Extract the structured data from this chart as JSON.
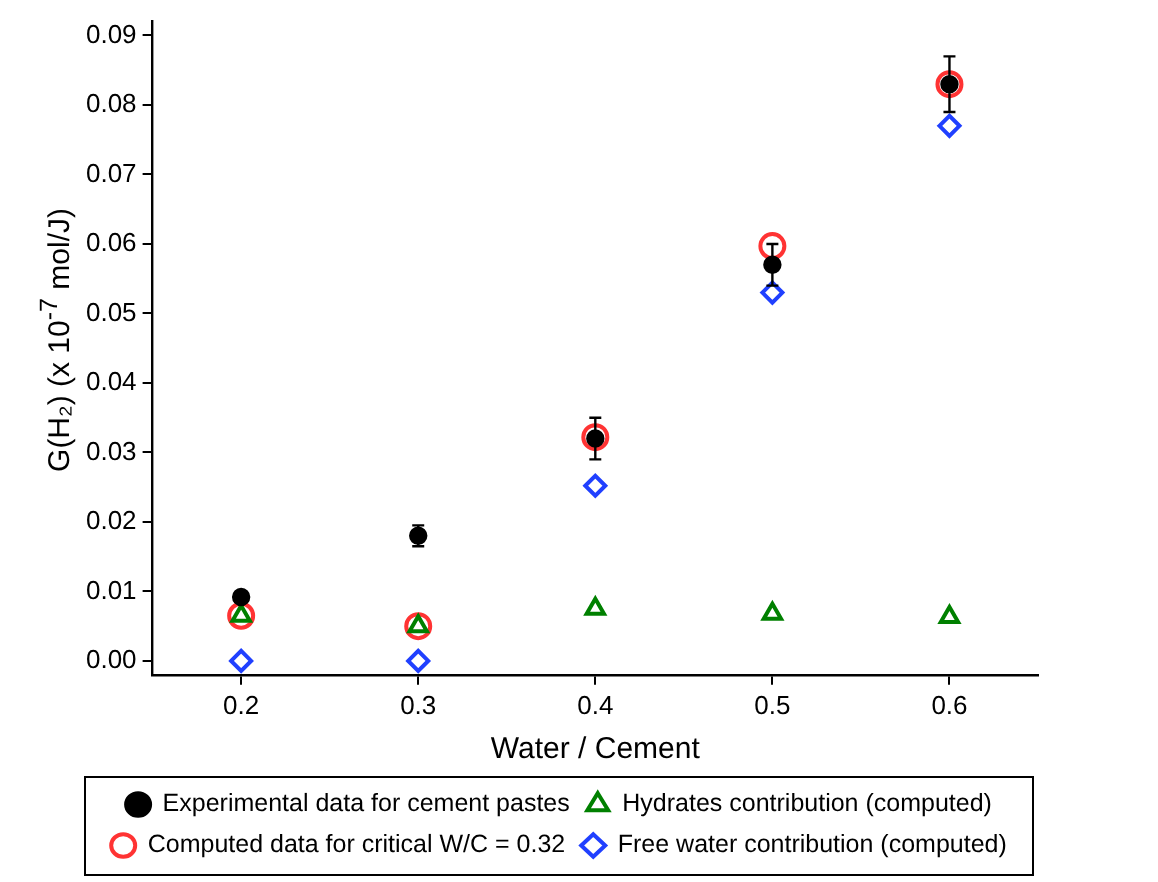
{
  "chart_data": {
    "type": "scatter",
    "xlabel": "Water / Cement",
    "ylabel": "G(H₂) (x 10$^{-7}$ mol/J)",
    "x": [
      0.2,
      0.3,
      0.4,
      0.5,
      0.6
    ],
    "xlim": [
      0.15,
      0.65
    ],
    "xticks": [
      0.2,
      0.3,
      0.4,
      0.5,
      0.6
    ],
    "ylim": [
      -0.002,
      0.092
    ],
    "yticks": [
      {
        "value": 0,
        "label": "0.00"
      },
      {
        "value": 0.01,
        "label": "0.01"
      },
      {
        "value": 0.02,
        "label": "0.02"
      },
      {
        "value": 0.03,
        "label": "0.03"
      },
      {
        "value": 0.04,
        "label": "0.04"
      },
      {
        "value": 0.05,
        "label": "0.05"
      },
      {
        "value": 0.06,
        "label": "0.06"
      },
      {
        "value": 0.07,
        "label": "0.07"
      },
      {
        "value": 0.08,
        "label": "0.08"
      },
      {
        "value": 0.09,
        "label": "0.09"
      }
    ],
    "grid": false,
    "legend": "bottom",
    "series": [
      {
        "name": "Experimental data for cement pastes",
        "color": "#000000",
        "marker": "circle",
        "values": [
          0.0092,
          0.018,
          0.032,
          0.057,
          0.083
        ],
        "errors": [
          null,
          0.0015,
          0.003,
          0.003,
          0.004
        ]
      },
      {
        "name": "Computed data for critical W/C = 0.32",
        "color": "#ff3333",
        "marker": "circle",
        "values": [
          0.0065,
          0.005,
          0.0322,
          0.0597,
          0.083
        ]
      },
      {
        "name": "Hydrates contribution (computed)",
        "color": "#008000",
        "marker": "triangle",
        "values": [
          0.0065,
          0.005,
          0.0075,
          0.0068,
          0.0063
        ]
      },
      {
        "name": "Free water contribution (computed)",
        "color": "#2040ff",
        "marker": "diamond",
        "values": [
          0,
          0,
          0.0252,
          0.053,
          0.077
        ]
      }
    ]
  }
}
